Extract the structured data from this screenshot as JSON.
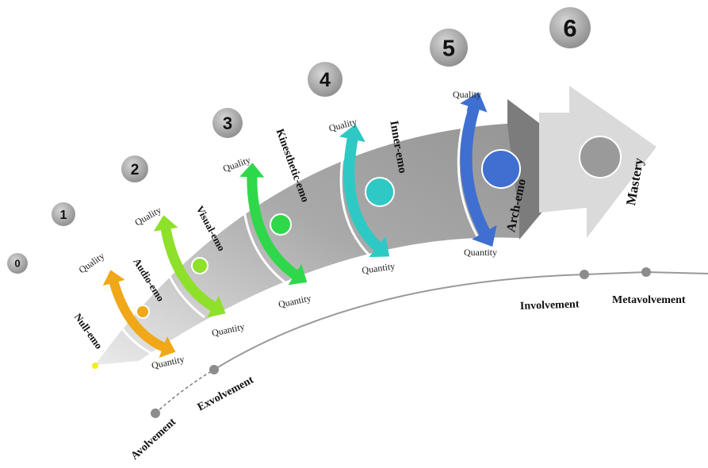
{
  "stages": [
    {
      "number": "0",
      "name": "Null-emo",
      "color": "#f2ec1c",
      "quality": "",
      "quantity": ""
    },
    {
      "number": "1",
      "name": "Audio-emo",
      "color": "#f0a818",
      "quality": "Quality",
      "quantity": "Quantity"
    },
    {
      "number": "2",
      "name": "Visual-emo",
      "color": "#8ee02a",
      "quality": "Quality",
      "quantity": "Quantity"
    },
    {
      "number": "3",
      "name": "Kinesthetic-emo",
      "color": "#2fd84a",
      "quality": "Quality",
      "quantity": "Quantity"
    },
    {
      "number": "4",
      "name": "Inner-emo",
      "color": "#2ec9c4",
      "quality": "Quality",
      "quantity": "Quantity"
    },
    {
      "number": "5",
      "name": "Arch-emo",
      "color": "#3f6fd0",
      "quality": "Quality",
      "quantity": "Quantity"
    },
    {
      "number": "6",
      "name": "Mastery",
      "color": "#9a9a9a",
      "quality": "",
      "quantity": ""
    }
  ],
  "scale": [
    "Avolvement",
    "Exvolvement",
    "Involvement",
    "Metavolvement"
  ]
}
